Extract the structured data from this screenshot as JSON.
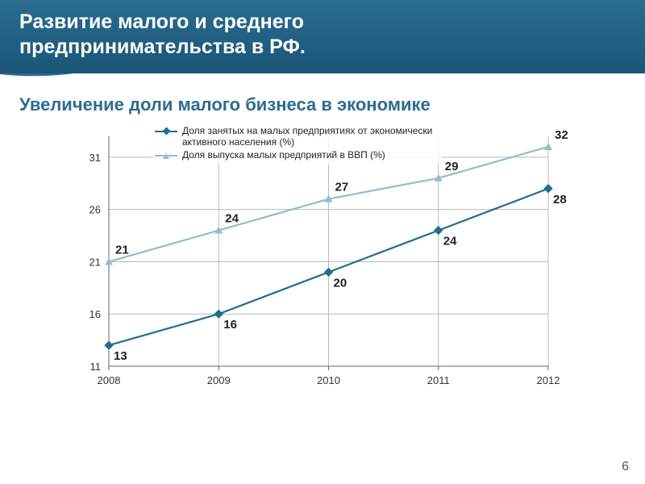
{
  "header": {
    "title_line1": "Развитие малого и среднего",
    "title_line2": "предпринимательства в РФ."
  },
  "subtitle": "Увеличение доли малого бизнеса в экономике",
  "chart": {
    "type": "line",
    "legend": {
      "series_a": "Доля занятых на малых предприятиях от экономически активного населения (%)",
      "series_b": "Доля выпуска малых предприятий в ВВП (%)"
    },
    "x_categories": [
      "2008",
      "2009",
      "2010",
      "2011",
      "2012"
    ],
    "y_ticks": [
      11,
      16,
      21,
      26,
      31
    ],
    "ylim": [
      11,
      33
    ],
    "series_a_values": [
      13,
      16,
      20,
      24,
      28
    ],
    "series_b_values": [
      21,
      24,
      27,
      29,
      32
    ],
    "series_a_color": "#1f6d8f",
    "series_b_color": "#8fbecf",
    "series_a_marker": "diamond",
    "series_b_marker": "triangle",
    "grid_color": "#bbbbbb",
    "axis_color": "#666666",
    "background_color": "#ffffff",
    "line_width": 2.2,
    "label_fontsize": 15,
    "tick_fontsize": 13
  },
  "page_number": "6",
  "theme": {
    "header_gradient_top": "#2b6d8f",
    "header_gradient_bottom": "#1a5577",
    "subtitle_color": "#2b6d8f"
  }
}
